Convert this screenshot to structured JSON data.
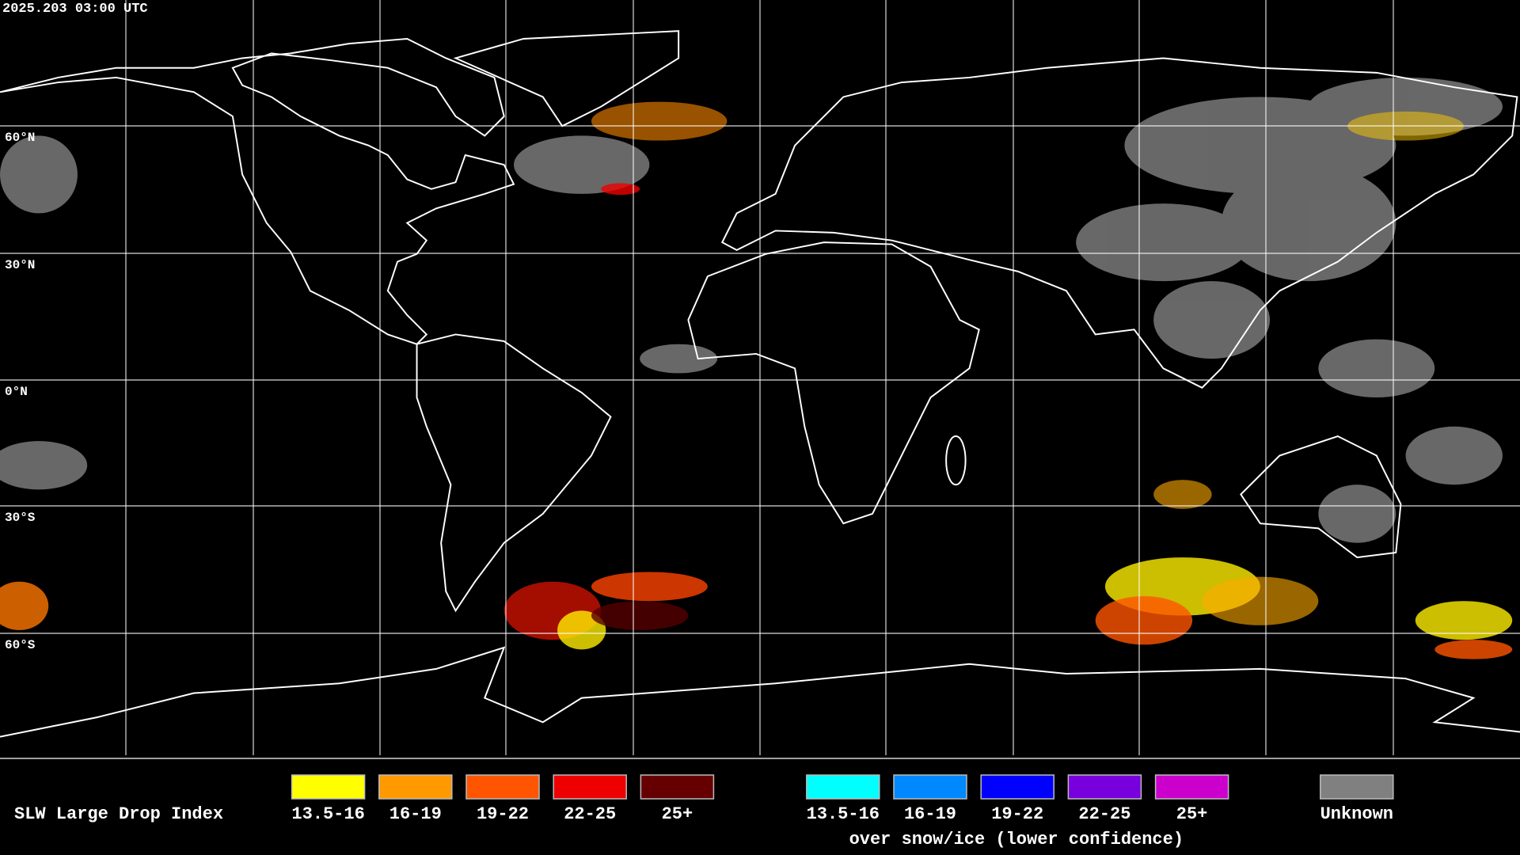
{
  "header": {
    "timestamp": "2025.203 03:00 UTC"
  },
  "map": {
    "latitude_labels": [
      "60°N",
      "30°N",
      "0°N",
      "30°S",
      "60°S"
    ]
  },
  "legend": {
    "title": "SLW Large Drop Index",
    "groups": [
      {
        "items": [
          {
            "label": "13.5-16",
            "color": "#ffff00"
          },
          {
            "label": "16-19",
            "color": "#ff9900"
          },
          {
            "label": "19-22",
            "color": "#ff5500"
          },
          {
            "label": "22-25",
            "color": "#ee0000"
          },
          {
            "label": "25+",
            "color": "#660000"
          }
        ]
      },
      {
        "items": [
          {
            "label": "13.5-16",
            "color": "#00ffff"
          },
          {
            "label": "16-19",
            "color": "#0088ff"
          },
          {
            "label": "19-22",
            "color": "#0000ff"
          },
          {
            "label": "22-25",
            "color": "#7700dd"
          },
          {
            "label": "25+",
            "color": "#cc00cc"
          }
        ],
        "caption": "over snow/ice (lower confidence)"
      }
    ],
    "unknown": {
      "label": "Unknown",
      "color": "#808080"
    }
  }
}
